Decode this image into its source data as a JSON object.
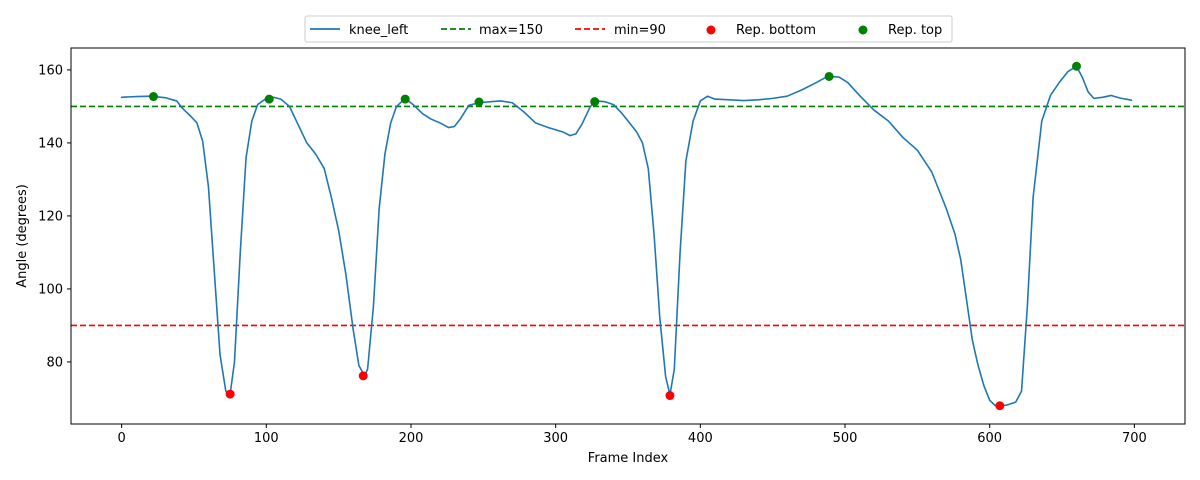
{
  "chart_data": {
    "type": "line",
    "title": "",
    "xlabel": "Frame Index",
    "ylabel": "Angle (degrees)",
    "xlim": [
      -35,
      735
    ],
    "ylim": [
      63,
      166
    ],
    "x_ticks": [
      0,
      100,
      200,
      300,
      400,
      500,
      600,
      700
    ],
    "y_ticks": [
      80,
      100,
      120,
      140,
      160
    ],
    "grid": false,
    "legend_position": "top-center",
    "colors": {
      "series": "#1f77b4",
      "max_line": "#008000",
      "min_line": "#ff0000",
      "bottom_markers": "#ff0000",
      "top_markers": "#008000"
    },
    "series": [
      {
        "name": "knee_left",
        "x": [
          0,
          10,
          20,
          30,
          38,
          42,
          48,
          52,
          56,
          60,
          64,
          68,
          72,
          75,
          78,
          82,
          86,
          90,
          94,
          100,
          105,
          110,
          116,
          122,
          128,
          134,
          140,
          145,
          150,
          155,
          160,
          164,
          168,
          170,
          174,
          178,
          182,
          186,
          190,
          196,
          202,
          208,
          214,
          220,
          226,
          230,
          234,
          240,
          247,
          255,
          262,
          270,
          278,
          286,
          295,
          305,
          310,
          314,
          318,
          324,
          328,
          334,
          340,
          346,
          352,
          356,
          360,
          364,
          368,
          372,
          376,
          379,
          382,
          386,
          390,
          395,
          400,
          405,
          410,
          420,
          430,
          440,
          450,
          460,
          470,
          480,
          486,
          490,
          496,
          502,
          510,
          520,
          530,
          540,
          550,
          560,
          570,
          576,
          580,
          584,
          588,
          592,
          596,
          600,
          604,
          608,
          612,
          618,
          622,
          626,
          630,
          636,
          642,
          648,
          654,
          660,
          664,
          668,
          672,
          678,
          684,
          690,
          698
        ],
        "values": [
          152.5,
          152.7,
          152.8,
          152.4,
          151.5,
          149.5,
          147.2,
          145.5,
          140.5,
          128,
          105,
          82,
          72,
          71.2,
          80,
          110,
          136,
          146,
          150.5,
          152.2,
          152.5,
          152,
          150,
          145,
          140,
          137,
          133,
          125,
          116,
          104,
          89,
          79,
          76.2,
          78,
          95,
          122,
          137,
          145.5,
          150,
          152.2,
          150.3,
          148,
          146.5,
          145.5,
          144.2,
          144.5,
          146.5,
          150.3,
          151,
          151.3,
          151.5,
          151,
          148.5,
          145.5,
          144.2,
          143,
          142,
          142.5,
          145,
          150,
          151.5,
          151.3,
          150.5,
          148,
          145,
          143,
          140,
          133,
          115,
          92,
          76,
          71,
          78,
          110,
          135,
          146,
          151.5,
          152.8,
          152,
          151.8,
          151.6,
          151.8,
          152.2,
          152.8,
          154.5,
          156.5,
          157.8,
          158.2,
          158,
          156.5,
          153,
          149,
          146,
          141.5,
          138,
          132,
          122,
          115,
          108,
          97,
          86,
          79,
          73.5,
          69.5,
          68,
          68,
          68.2,
          69,
          72,
          95,
          125,
          146,
          153,
          156.5,
          159.5,
          161,
          158,
          154,
          152.2,
          152.5,
          153,
          152.3,
          151.7
        ]
      }
    ],
    "reference_lines": [
      {
        "name": "max=150",
        "y": 150,
        "style": "dashed"
      },
      {
        "name": "min=90",
        "y": 90,
        "style": "dashed"
      }
    ],
    "markers": [
      {
        "name": "Rep. bottom",
        "x": [
          75,
          167,
          379,
          607
        ],
        "y": [
          71.2,
          76.2,
          70.8,
          68
        ]
      },
      {
        "name": "Rep. top",
        "x": [
          22,
          102,
          196,
          247,
          327,
          489,
          660
        ],
        "y": [
          152.7,
          152,
          152,
          151.2,
          151.3,
          158.2,
          161
        ]
      }
    ]
  }
}
